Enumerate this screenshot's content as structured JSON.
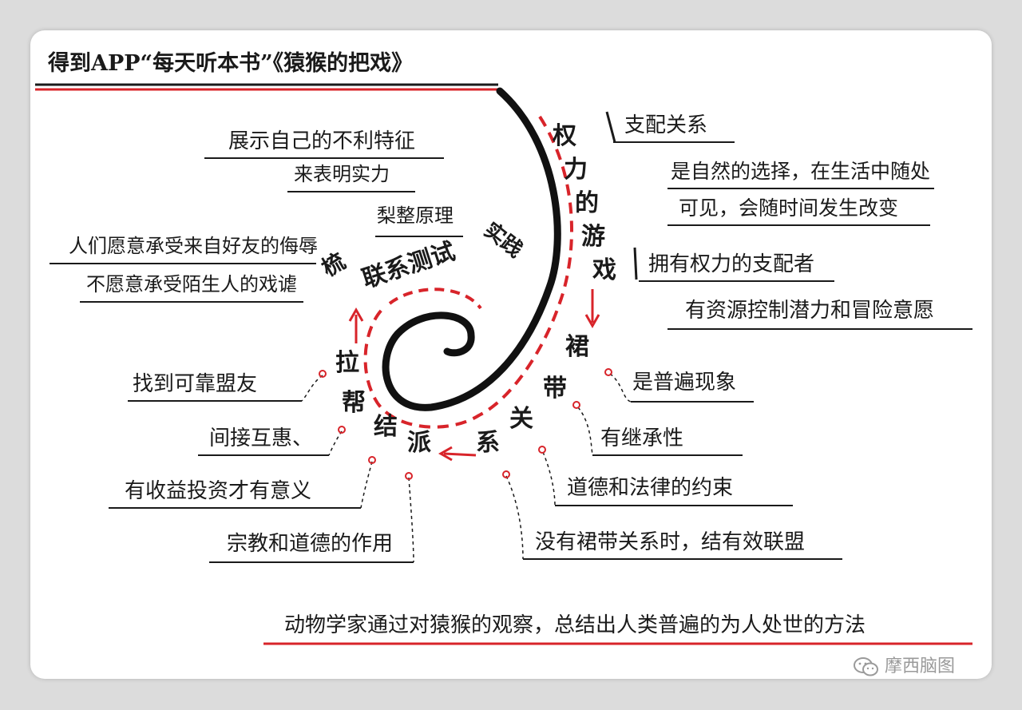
{
  "title": "得到APP“每天听本书”《猿猴的把戏》",
  "bottom_summary": "动物学家通过对猿猴的观察，总结出人类普遍的为人处世的方法",
  "watermark": "摩西脑图",
  "colors": {
    "ink": "#1a1a1a",
    "accent": "#d8242a"
  },
  "spiral_labels": {
    "power_game": [
      "权",
      "力",
      "的",
      "游",
      "戏"
    ],
    "bond": [
      "裙",
      "带",
      "关",
      "系"
    ],
    "alliance": [
      "拉",
      "帮",
      "结",
      "派"
    ],
    "contact": "联系测试",
    "grooming": "梳",
    "practice": "实践",
    "hair_principle": "梨整原理"
  },
  "branches": {
    "power_notes": [
      "支配关系",
      "是自然的选择，在生活中随处",
      "可见，会随时间发生改变",
      "拥有权力的支配者",
      "有资源控制潜力和冒险意愿"
    ],
    "bond_notes": [
      "是普遍现象",
      "有继承性",
      "道德和法律的约束",
      "没有裙带关系时，结有效联盟"
    ],
    "alliance_notes": [
      "找到可靠盟友",
      "间接互惠、",
      "有收益投资才有意义",
      "宗教和道德的作用"
    ],
    "contact_notes": [
      "展示自己的不利特征",
      "来表明实力",
      "人们愿意承受来自好友的侮辱",
      "不愿意承受陌生人的戏谑"
    ]
  }
}
